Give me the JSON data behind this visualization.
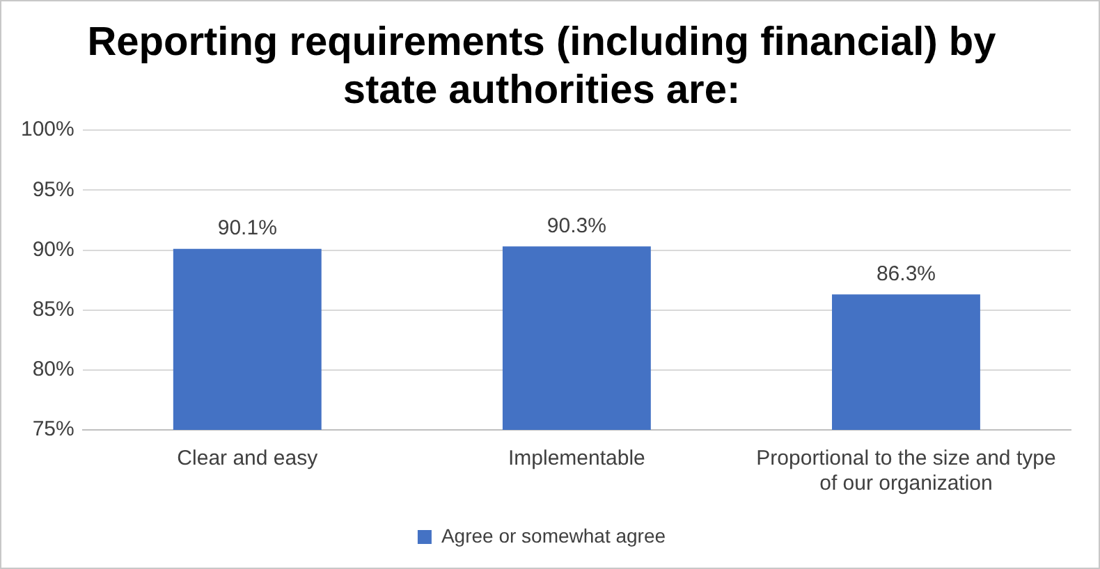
{
  "chart_data": {
    "type": "bar",
    "title": "Reporting requirements (including financial) by state authorities are:",
    "categories": [
      "Clear and easy",
      "Implementable",
      "Proportional to the size and type of our organization"
    ],
    "series": [
      {
        "name": "Agree or somewhat agree",
        "color": "#4472c4",
        "values": [
          90.1,
          90.3,
          86.3
        ]
      }
    ],
    "value_labels": [
      "90.1%",
      "90.3%",
      "86.3%"
    ],
    "ylim": [
      75,
      100
    ],
    "yticks": [
      {
        "value": 75,
        "label": "75%"
      },
      {
        "value": 80,
        "label": "80%"
      },
      {
        "value": 85,
        "label": "85%"
      },
      {
        "value": 90,
        "label": "90%"
      },
      {
        "value": 95,
        "label": "95%"
      },
      {
        "value": 100,
        "label": "100%"
      }
    ],
    "grid": "y",
    "legend": "bottom"
  }
}
